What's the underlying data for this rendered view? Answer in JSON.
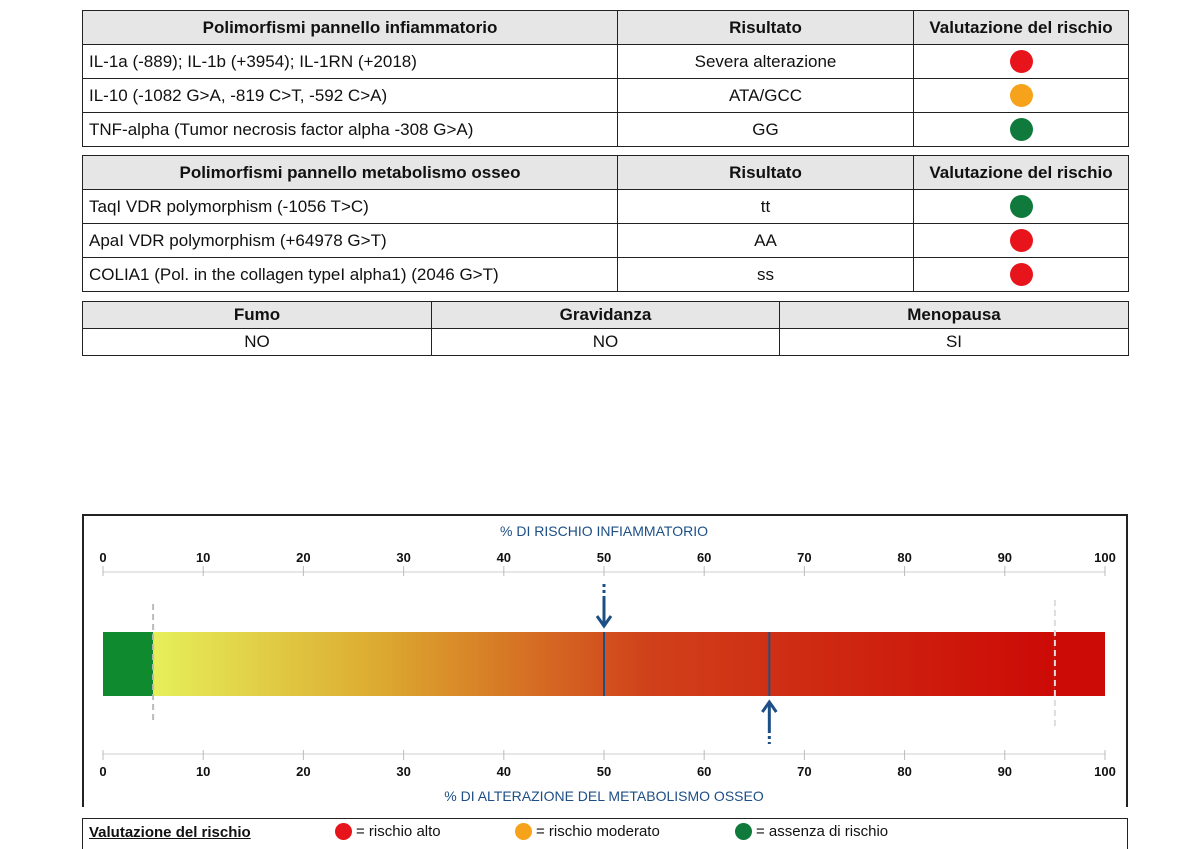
{
  "inflammatory_table": {
    "headers": [
      "Polimorfismi pannello infiammatorio",
      "Risultato",
      "Valutazione del rischio"
    ],
    "rows": [
      {
        "name": "IL-1a (-889); IL-1b (+3954); IL-1RN (+2018)",
        "result": "Severa alterazione",
        "risk": "alto"
      },
      {
        "name": "IL-10 (-1082 G>A, -819 C>T, -592 C>A)",
        "result": "ATA/GCC",
        "risk": "moderato"
      },
      {
        "name": "TNF-alpha (Tumor necrosis factor alpha -308 G>A)",
        "result": "GG",
        "risk": "assenza"
      }
    ]
  },
  "bone_table": {
    "headers": [
      "Polimorfismi pannello metabolismo osseo",
      "Risultato",
      "Valutazione del rischio"
    ],
    "rows": [
      {
        "name": "TaqI VDR polymorphism (-1056 T>C)",
        "result": "tt",
        "risk": "assenza"
      },
      {
        "name": "ApaI VDR polymorphism (+64978 G>T)",
        "result": "AA",
        "risk": "alto"
      },
      {
        "name": "COLIA1 (Pol. in the collagen typeI alpha1) (2046 G>T)",
        "result": "ss",
        "risk": "alto"
      }
    ]
  },
  "factors_table": {
    "headers": [
      "Fumo",
      "Gravidanza",
      "Menopausa"
    ],
    "values": [
      "NO",
      "NO",
      "SI"
    ]
  },
  "risk_colors": {
    "alto": "#e8141b",
    "moderato": "#f7a21b",
    "assenza": "#0f7a3c"
  },
  "scale": {
    "top_title": "% DI RISCHIO INFIAMMATORIO",
    "bottom_title": "% DI ALTERAZIONE DEL METABOLISMO OSSEO",
    "ticks": [
      "0",
      "10",
      "20",
      "30",
      "40",
      "50",
      "60",
      "70",
      "80",
      "90",
      "100"
    ],
    "inflammatory_percent": 50,
    "bone_percent": 66.5,
    "green_zone_end": 5,
    "upper_limit": 95,
    "title_color": "#1d4f86",
    "marker_color": "#1d4f86"
  },
  "legend": {
    "title": "Valutazione del rischio",
    "items": [
      {
        "key": "alto",
        "label": "= rischio alto"
      },
      {
        "key": "moderato",
        "label": "= rischio moderato"
      },
      {
        "key": "assenza",
        "label": "= assenza di rischio"
      }
    ]
  }
}
